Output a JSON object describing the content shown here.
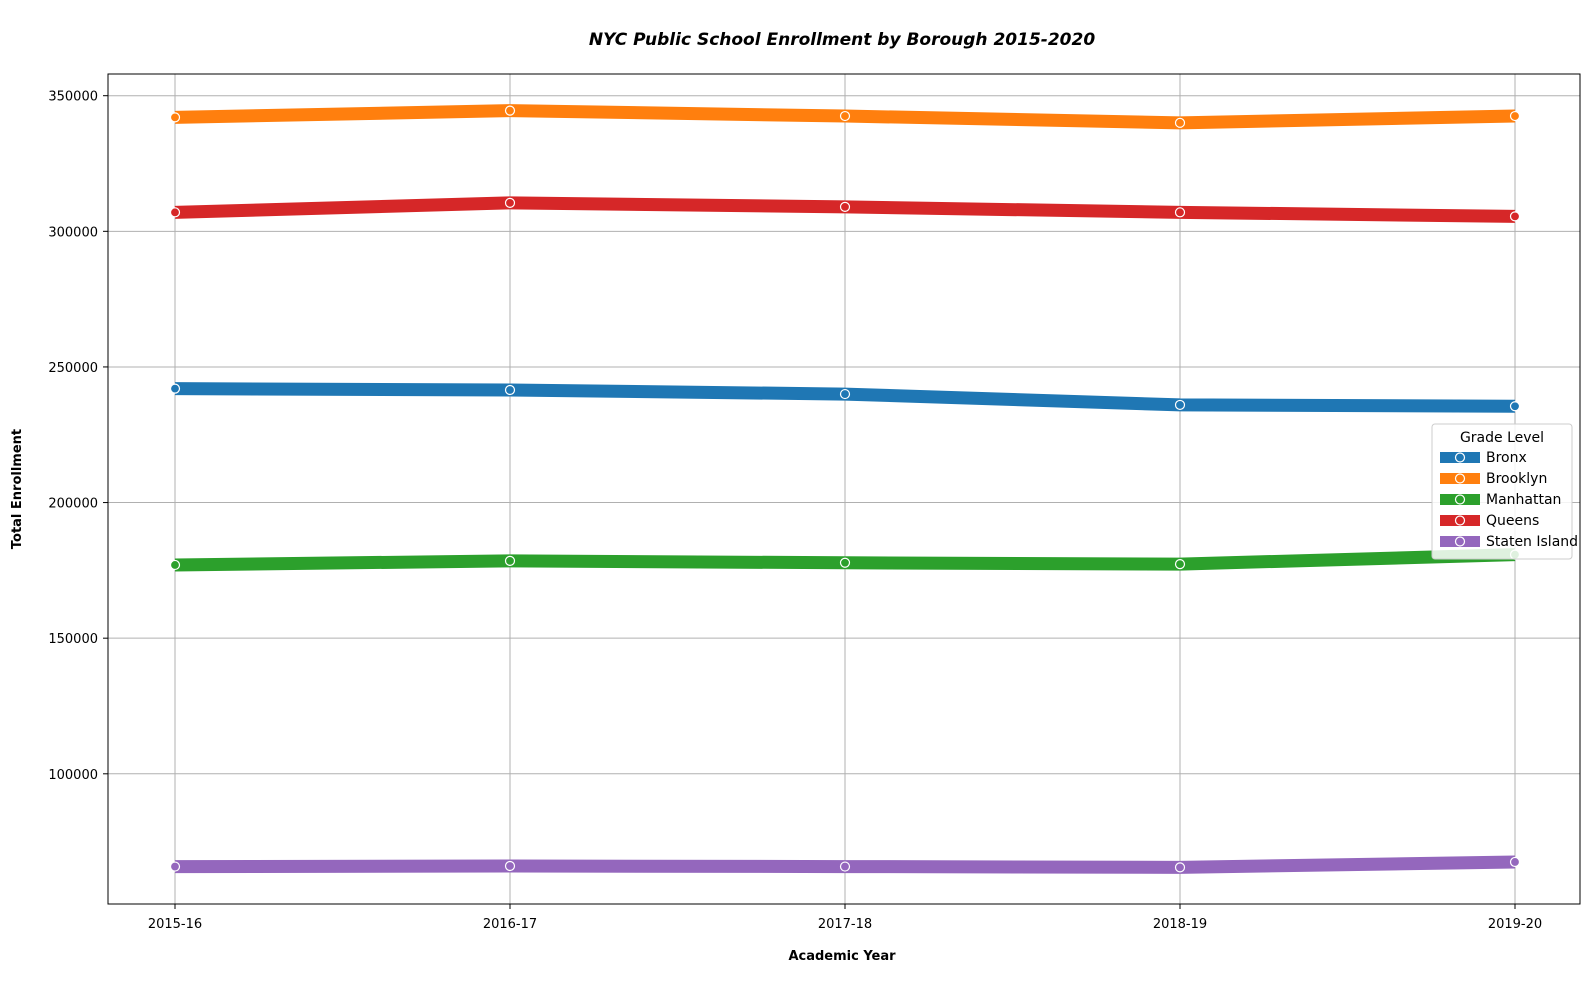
{
  "chart_data": {
    "type": "line",
    "title": "NYC Public School Enrollment by Borough 2015-2020",
    "xlabel": "Academic Year",
    "ylabel": "Total Enrollment",
    "categories": [
      "2015-16",
      "2016-17",
      "2017-18",
      "2018-19",
      "2019-20"
    ],
    "ylim": [
      52000,
      358000
    ],
    "yticks": [
      100000,
      150000,
      200000,
      250000,
      300000,
      350000
    ],
    "ytick_labels": [
      "100000",
      "150000",
      "200000",
      "250000",
      "300000",
      "350000"
    ],
    "grid": true,
    "legend": {
      "title": "Grade Level",
      "placement": "center-right"
    },
    "series": [
      {
        "name": "Bronx",
        "color": "#1f77b4",
        "values": [
          242000,
          241500,
          240000,
          236000,
          235500
        ]
      },
      {
        "name": "Brooklyn",
        "color": "#ff7f0e",
        "values": [
          342000,
          344500,
          342500,
          340000,
          342500
        ]
      },
      {
        "name": "Manhattan",
        "color": "#2ca02c",
        "values": [
          177000,
          178500,
          177800,
          177300,
          180800
        ]
      },
      {
        "name": "Queens",
        "color": "#d62728",
        "values": [
          307000,
          310500,
          309000,
          307000,
          305500
        ]
      },
      {
        "name": "Staten Island",
        "color": "#9467bd",
        "values": [
          65800,
          66000,
          65800,
          65500,
          67500
        ]
      }
    ]
  }
}
